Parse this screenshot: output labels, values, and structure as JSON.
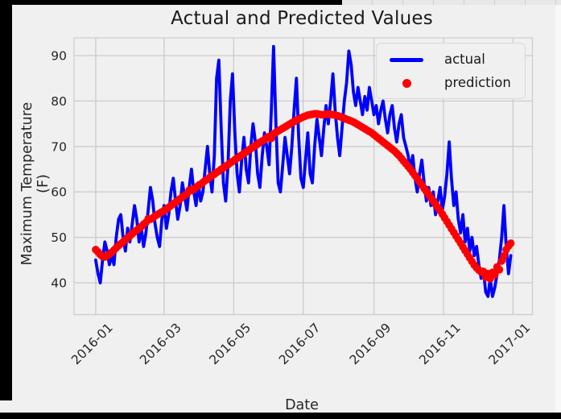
{
  "window": {
    "title": "figure-window"
  },
  "chart_data": {
    "type": "line",
    "title": "Actual and Predicted Values",
    "xlabel": "Date",
    "ylabel": "Maximum Temperature (F)",
    "grid": true,
    "background_color": "#f0f0f0",
    "grid_color": "#cbcbcb",
    "text_color": "#262626",
    "ylim": [
      33,
      93.9
    ],
    "xlim_days": [
      -19,
      383
    ],
    "y_ticks": [
      40,
      50,
      60,
      70,
      80,
      90
    ],
    "x_ticks": [
      {
        "label": "2016-01",
        "day": 0
      },
      {
        "label": "2016-03",
        "day": 60
      },
      {
        "label": "2016-05",
        "day": 121
      },
      {
        "label": "2016-07",
        "day": 182
      },
      {
        "label": "2016-09",
        "day": 244
      },
      {
        "label": "2016-11",
        "day": 305
      },
      {
        "label": "2017-01",
        "day": 366
      }
    ],
    "legend": {
      "position": "upper right",
      "entries": [
        {
          "label": "actual",
          "color": "#0000ff",
          "marker": "line"
        },
        {
          "label": "prediction",
          "color": "#ff0000",
          "marker": "dot"
        }
      ]
    },
    "series": [
      {
        "name": "actual",
        "type": "line",
        "color": "#0000ff",
        "line_width": 3.8,
        "start_day": 0,
        "step_days": 2,
        "values": [
          45,
          42,
          40,
          45,
          49,
          47,
          44,
          46,
          44,
          50,
          54,
          55,
          50,
          47,
          52,
          49,
          53,
          57,
          54,
          49,
          52,
          48,
          51,
          56,
          61,
          58,
          53,
          50,
          48,
          54,
          57,
          52,
          55,
          60,
          63,
          58,
          54,
          57,
          62,
          59,
          56,
          61,
          65,
          60,
          57,
          62,
          58,
          60,
          65,
          70,
          64,
          60,
          68,
          85,
          89,
          74,
          62,
          58,
          66,
          80,
          86,
          73,
          64,
          60,
          67,
          72,
          65,
          62,
          70,
          75,
          71,
          64,
          61,
          68,
          73,
          70,
          66,
          78,
          92,
          75,
          62,
          60,
          66,
          72,
          68,
          64,
          70,
          78,
          85,
          72,
          63,
          61,
          67,
          73,
          64,
          62,
          70,
          76,
          72,
          68,
          74,
          79,
          75,
          80,
          86,
          78,
          72,
          68,
          74,
          80,
          84,
          91,
          88,
          82,
          79,
          83,
          80,
          77,
          81,
          78,
          83,
          80,
          77,
          79,
          75,
          78,
          80,
          76,
          73,
          77,
          79,
          74,
          71,
          75,
          77,
          72,
          70,
          68,
          65,
          68,
          63,
          60,
          64,
          67,
          62,
          58,
          61,
          57,
          60,
          55,
          58,
          61,
          56,
          59,
          64,
          71,
          63,
          57,
          60,
          54,
          51,
          55,
          49,
          52,
          47,
          50,
          46,
          48,
          44,
          41,
          43,
          38,
          37,
          41,
          37,
          39,
          42,
          45,
          50,
          57,
          48,
          42,
          46
        ]
      },
      {
        "name": "prediction",
        "type": "scatter",
        "color": "#ff0000",
        "marker_radius": 4.8,
        "start_day": 0,
        "step_days": 2,
        "values": [
          47.3,
          46.8,
          46.2,
          45.8,
          45.7,
          45.9,
          46.3,
          46.7,
          47.2,
          47.7,
          48.2,
          48.6,
          49.0,
          49.5,
          49.9,
          50.3,
          50.8,
          51.2,
          51.6,
          52.0,
          52.4,
          52.9,
          53.3,
          54.1,
          54.0,
          54.3,
          54.7,
          55.0,
          55.3,
          55.6,
          55.9,
          56.2,
          56.6,
          57.0,
          57.4,
          57.7,
          58.1,
          58.5,
          58.9,
          59.2,
          59.6,
          60.4,
          60.3,
          60.7,
          61.0,
          61.4,
          61.7,
          62.1,
          62.5,
          62.8,
          63.2,
          63.6,
          63.9,
          64.3,
          64.6,
          65.0,
          65.3,
          65.7,
          66.0,
          66.4,
          66.7,
          67.1,
          67.4,
          67.8,
          68.1,
          68.5,
          68.8,
          69.2,
          69.5,
          69.9,
          70.2,
          70.5,
          70.9,
          71.2,
          71.5,
          71.9,
          72.2,
          71.8,
          72.8,
          73.1,
          73.4,
          73.7,
          74.0,
          74.3,
          74.6,
          74.9,
          75.2,
          75.5,
          75.8,
          76.0,
          76.3,
          76.5,
          76.7,
          76.9,
          77.0,
          77.1,
          77.2,
          77.2,
          77.1,
          77.0,
          77.0,
          77.1,
          77.2,
          77.1,
          77.0,
          76.9,
          76.8,
          76.6,
          76.4,
          76.2,
          76.0,
          75.8,
          75.6,
          75.4,
          75.1,
          74.8,
          74.5,
          74.2,
          73.9,
          73.6,
          73.3,
          73.0,
          72.6,
          72.2,
          71.8,
          71.4,
          71.0,
          70.6,
          70.2,
          69.8,
          69.4,
          69.0,
          68.5,
          68.0,
          67.4,
          66.8,
          66.2,
          65.6,
          65.0,
          64.3,
          63.6,
          62.9,
          62.2,
          61.5,
          60.8,
          60.1,
          59.4,
          58.7,
          58.0,
          57.3,
          56.6,
          55.9,
          55.1,
          54.3,
          53.5,
          52.7,
          51.9,
          51.1,
          50.3,
          49.5,
          48.7,
          47.9,
          47.1,
          46.3,
          45.5,
          44.7,
          43.9,
          43.3,
          42.8,
          42.4,
          42.5,
          41.2,
          42.0,
          40.9,
          42.3,
          41.8,
          43.5,
          42.9,
          44.8,
          45.9,
          47.3,
          48.1,
          48.7
        ]
      }
    ]
  }
}
